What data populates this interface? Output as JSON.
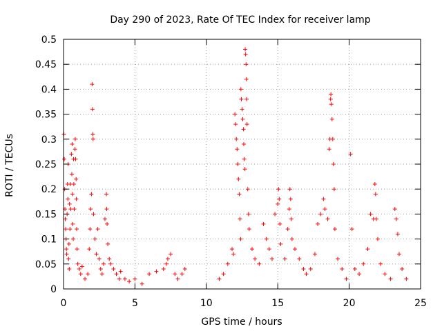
{
  "chart_data": {
    "type": "scatter",
    "title": "Day 290 of 2023, Rate Of TEC Index for receiver lamp",
    "xlabel": "GPS time / hours",
    "ylabel": "ROTI / TECUs",
    "xlim": [
      0,
      25
    ],
    "ylim": [
      0,
      0.5
    ],
    "x_ticks": [
      "0",
      "5",
      "10",
      "15",
      "20",
      "25"
    ],
    "y_ticks": [
      "0",
      "0.05",
      "0.1",
      "0.15",
      "0.2",
      "0.25",
      "0.3",
      "0.35",
      "0.4",
      "0.45",
      "0.5"
    ],
    "grid": true,
    "marker": "+",
    "color": "#ff0000",
    "series": [
      {
        "points": [
          [
            0.02,
            0.31
          ],
          [
            0.05,
            0.26
          ],
          [
            0.08,
            0.2
          ],
          [
            0.1,
            0.16
          ],
          [
            0.12,
            0.14
          ],
          [
            0.15,
            0.12
          ],
          [
            0.18,
            0.1
          ],
          [
            0.2,
            0.08
          ],
          [
            0.22,
            0.07
          ],
          [
            0.25,
            0.15
          ],
          [
            0.28,
            0.21
          ],
          [
            0.3,
            0.18
          ],
          [
            0.32,
            0.25
          ],
          [
            0.35,
            0.06
          ],
          [
            0.38,
            0.09
          ],
          [
            0.4,
            0.04
          ],
          [
            0.42,
            0.17
          ],
          [
            0.45,
            0.12
          ],
          [
            0.48,
            0.21
          ],
          [
            0.5,
            0.16
          ],
          [
            0.55,
            0.27
          ],
          [
            0.58,
            0.23
          ],
          [
            0.6,
            0.29
          ],
          [
            0.62,
            0.19
          ],
          [
            0.65,
            0.13
          ],
          [
            0.68,
            0.1
          ],
          [
            0.7,
            0.26
          ],
          [
            0.72,
            0.21
          ],
          [
            0.75,
            0.16
          ],
          [
            0.8,
            0.28
          ],
          [
            0.82,
            0.3
          ],
          [
            0.85,
            0.26
          ],
          [
            0.88,
            0.22
          ],
          [
            0.9,
            0.18
          ],
          [
            0.92,
            0.12
          ],
          [
            0.95,
            0.08
          ],
          [
            1.0,
            0.05
          ],
          [
            1.1,
            0.04
          ],
          [
            1.2,
            0.03
          ],
          [
            1.3,
            0.045
          ],
          [
            1.5,
            0.02
          ],
          [
            1.7,
            0.03
          ],
          [
            1.8,
            0.08
          ],
          [
            1.85,
            0.12
          ],
          [
            1.9,
            0.16
          ],
          [
            1.95,
            0.19
          ],
          [
            2.0,
            0.41
          ],
          [
            2.02,
            0.36
          ],
          [
            2.05,
            0.31
          ],
          [
            2.07,
            0.3
          ],
          [
            2.1,
            0.15
          ],
          [
            2.2,
            0.1
          ],
          [
            2.3,
            0.07
          ],
          [
            2.4,
            0.12
          ],
          [
            2.5,
            0.06
          ],
          [
            2.6,
            0.04
          ],
          [
            2.7,
            0.03
          ],
          [
            2.8,
            0.05
          ],
          [
            2.9,
            0.14
          ],
          [
            3.0,
            0.19
          ],
          [
            3.02,
            0.16
          ],
          [
            3.05,
            0.13
          ],
          [
            3.1,
            0.09
          ],
          [
            3.2,
            0.06
          ],
          [
            3.3,
            0.05
          ],
          [
            3.5,
            0.04
          ],
          [
            3.7,
            0.03
          ],
          [
            3.9,
            0.02
          ],
          [
            4.0,
            0.035
          ],
          [
            4.3,
            0.02
          ],
          [
            4.6,
            0.015
          ],
          [
            5.0,
            0.02
          ],
          [
            5.5,
            0.01
          ],
          [
            6.0,
            0.03
          ],
          [
            6.5,
            0.035
          ],
          [
            7.0,
            0.04
          ],
          [
            7.2,
            0.05
          ],
          [
            7.3,
            0.06
          ],
          [
            7.5,
            0.07
          ],
          [
            7.8,
            0.03
          ],
          [
            8.0,
            0.02
          ],
          [
            8.3,
            0.03
          ],
          [
            8.5,
            0.04
          ],
          [
            10.9,
            0.02
          ],
          [
            11.2,
            0.03
          ],
          [
            11.5,
            0.05
          ],
          [
            11.8,
            0.08
          ],
          [
            11.9,
            0.07
          ],
          [
            12.0,
            0.35
          ],
          [
            12.05,
            0.33
          ],
          [
            12.1,
            0.3
          ],
          [
            12.15,
            0.28
          ],
          [
            12.2,
            0.25
          ],
          [
            12.25,
            0.22
          ],
          [
            12.3,
            0.19
          ],
          [
            12.35,
            0.14
          ],
          [
            12.4,
            0.1
          ],
          [
            12.42,
            0.4
          ],
          [
            12.45,
            0.38
          ],
          [
            12.5,
            0.36
          ],
          [
            12.55,
            0.34
          ],
          [
            12.6,
            0.32
          ],
          [
            12.62,
            0.29
          ],
          [
            12.65,
            0.26
          ],
          [
            12.7,
            0.24
          ],
          [
            12.72,
            0.48
          ],
          [
            12.75,
            0.47
          ],
          [
            12.78,
            0.45
          ],
          [
            12.8,
            0.42
          ],
          [
            12.82,
            0.38
          ],
          [
            12.85,
            0.33
          ],
          [
            12.9,
            0.2
          ],
          [
            12.95,
            0.15
          ],
          [
            13.0,
            0.12
          ],
          [
            13.2,
            0.08
          ],
          [
            13.4,
            0.06
          ],
          [
            13.7,
            0.05
          ],
          [
            14.0,
            0.13
          ],
          [
            14.2,
            0.1
          ],
          [
            14.4,
            0.08
          ],
          [
            14.6,
            0.06
          ],
          [
            14.8,
            0.15
          ],
          [
            15.0,
            0.17
          ],
          [
            15.05,
            0.2
          ],
          [
            15.1,
            0.18
          ],
          [
            15.15,
            0.13
          ],
          [
            15.2,
            0.09
          ],
          [
            15.5,
            0.06
          ],
          [
            15.7,
            0.12
          ],
          [
            15.8,
            0.16
          ],
          [
            15.85,
            0.2
          ],
          [
            15.9,
            0.18
          ],
          [
            15.95,
            0.14
          ],
          [
            16.0,
            0.1
          ],
          [
            16.2,
            0.08
          ],
          [
            16.5,
            0.06
          ],
          [
            16.8,
            0.04
          ],
          [
            17.0,
            0.03
          ],
          [
            17.3,
            0.04
          ],
          [
            17.6,
            0.07
          ],
          [
            17.8,
            0.13
          ],
          [
            18.0,
            0.15
          ],
          [
            18.2,
            0.18
          ],
          [
            18.3,
            0.16
          ],
          [
            18.5,
            0.14
          ],
          [
            18.6,
            0.28
          ],
          [
            18.65,
            0.3
          ],
          [
            18.7,
            0.38
          ],
          [
            18.72,
            0.39
          ],
          [
            18.75,
            0.37
          ],
          [
            18.8,
            0.34
          ],
          [
            18.85,
            0.3
          ],
          [
            18.9,
            0.25
          ],
          [
            18.95,
            0.2
          ],
          [
            19.0,
            0.12
          ],
          [
            19.2,
            0.06
          ],
          [
            19.5,
            0.04
          ],
          [
            19.8,
            0.02
          ],
          [
            20.1,
            0.27
          ],
          [
            20.2,
            0.12
          ],
          [
            20.4,
            0.04
          ],
          [
            20.7,
            0.03
          ],
          [
            21.0,
            0.05
          ],
          [
            21.3,
            0.08
          ],
          [
            21.5,
            0.15
          ],
          [
            21.7,
            0.14
          ],
          [
            21.8,
            0.21
          ],
          [
            21.85,
            0.19
          ],
          [
            21.9,
            0.14
          ],
          [
            22.0,
            0.1
          ],
          [
            22.2,
            0.05
          ],
          [
            22.5,
            0.03
          ],
          [
            22.9,
            0.02
          ],
          [
            23.2,
            0.16
          ],
          [
            23.3,
            0.14
          ],
          [
            23.4,
            0.11
          ],
          [
            23.5,
            0.07
          ],
          [
            23.7,
            0.04
          ],
          [
            24.0,
            0.02
          ]
        ]
      }
    ]
  }
}
